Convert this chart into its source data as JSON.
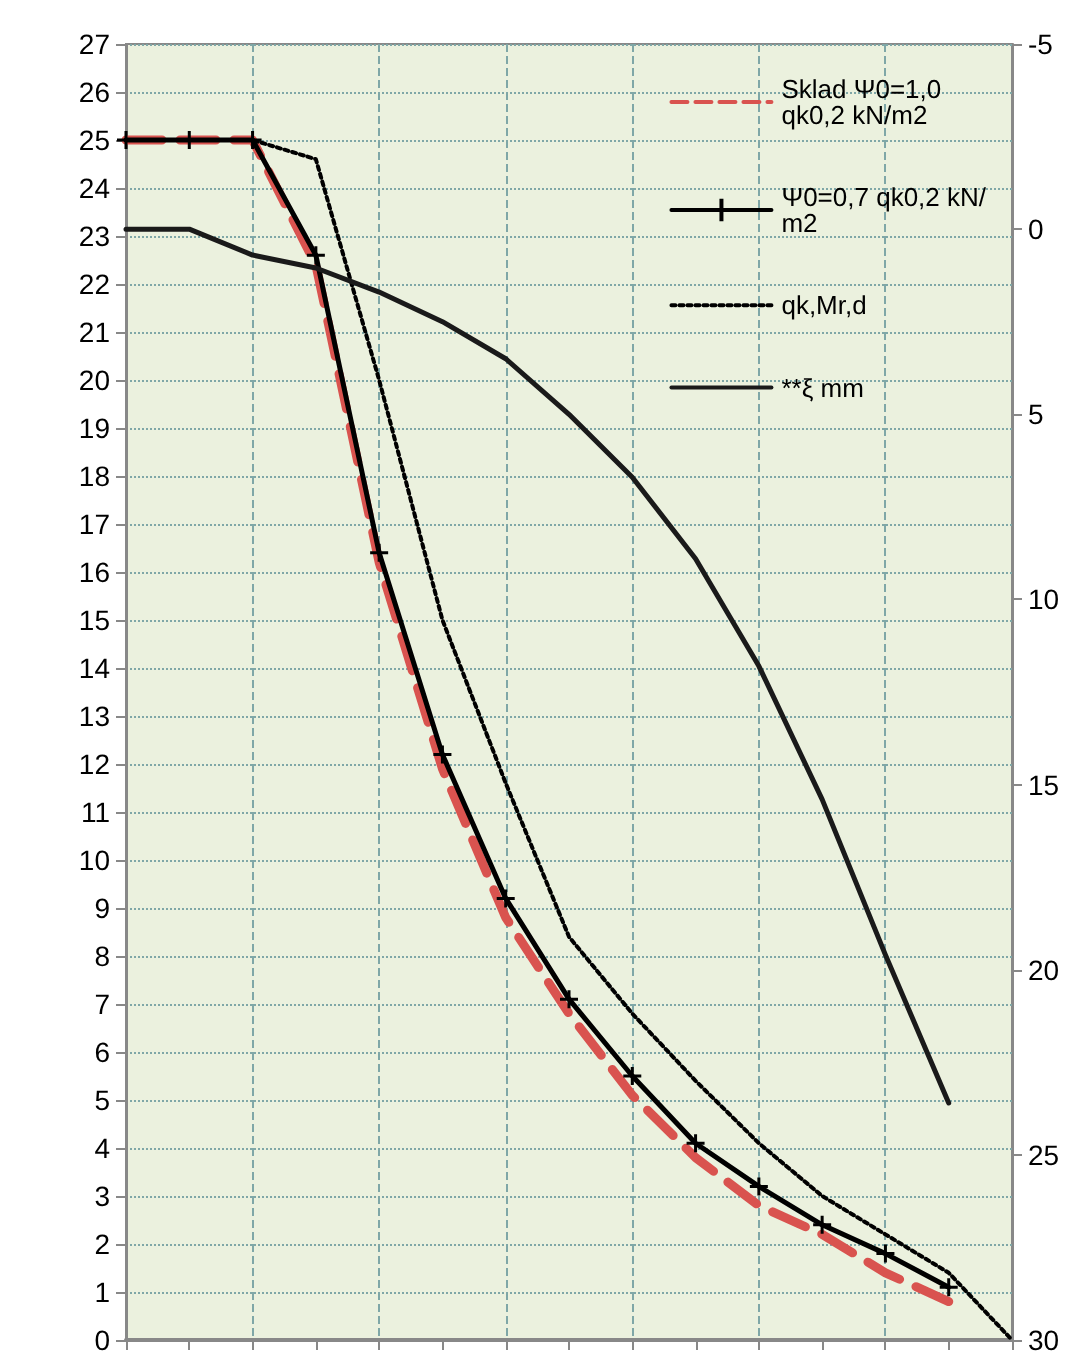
{
  "chart_data": {
    "type": "line",
    "categories": [
      null,
      null,
      null,
      null,
      null,
      null,
      null,
      null,
      null,
      null,
      null,
      null,
      null,
      null,
      null
    ],
    "series": [
      {
        "name": "Sklad Ψ0=1,0 qk0,2 kN/m2",
        "color": "#d9534f",
        "line_style": "dashed",
        "marker": "none",
        "values": [
          25,
          25,
          25,
          22.4,
          16.2,
          11.9,
          8.8,
          6.8,
          5.1,
          3.8,
          2.8,
          2.2,
          1.4,
          0.8,
          null
        ]
      },
      {
        "name": "Ψ0=0,7 qk0,2 kN/m2",
        "color": "#000000",
        "line_style": "solid",
        "marker": "cross",
        "values": [
          25,
          25,
          25,
          22.6,
          16.4,
          12.2,
          9.2,
          7.1,
          5.5,
          4.1,
          3.2,
          2.4,
          1.8,
          1.1,
          null
        ]
      },
      {
        "name": "qk,Mr,d",
        "color": "#000000",
        "line_style": "dotted",
        "marker": "none",
        "values": [
          25,
          25,
          25,
          24.6,
          20,
          15,
          11.6,
          8.4,
          6.8,
          5.4,
          4.1,
          3,
          2.2,
          1.4,
          0
        ]
      },
      {
        "name": "**ξ mm",
        "color": "#1a1a1a",
        "line_style": "solid",
        "marker": "none",
        "axis": "y2",
        "values": [
          0,
          0,
          0.7,
          1.05,
          1.7,
          2.5,
          3.5,
          5,
          6.7,
          8.9,
          11.8,
          15.4,
          19.6,
          23.6,
          null
        ]
      }
    ],
    "ylim": [
      0,
      27
    ],
    "yticks": [
      0,
      1,
      2,
      3,
      4,
      5,
      6,
      7,
      8,
      9,
      10,
      11,
      12,
      13,
      14,
      15,
      16,
      17,
      18,
      19,
      20,
      21,
      22,
      23,
      24,
      25,
      26,
      27
    ],
    "y2lim": [
      30,
      -5
    ],
    "y2ticks": [
      -5,
      0,
      5,
      10,
      15,
      20,
      25,
      30
    ],
    "grid": true,
    "legend": "top right"
  }
}
